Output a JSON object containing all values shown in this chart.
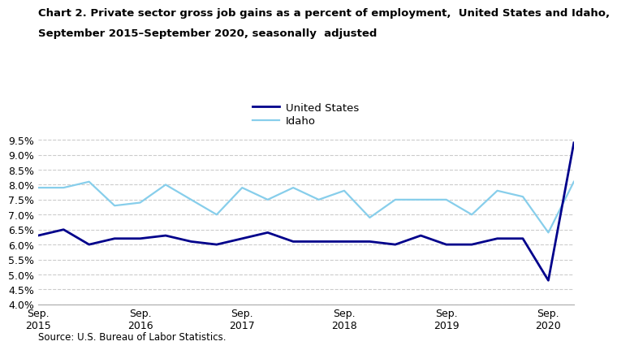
{
  "title_line1": "Chart 2. Private sector gross job gains as a percent of employment,  United States and Idaho,",
  "title_line2": "September 2015–September 2020, seasonally  adjusted",
  "source": "Source: U.S. Bureau of Labor Statistics.",
  "us_label": "United States",
  "idaho_label": "Idaho",
  "us_color": "#00008B",
  "idaho_color": "#87CEEB",
  "us_linewidth": 2.0,
  "idaho_linewidth": 1.6,
  "xlim": [
    0,
    21
  ],
  "ylim": [
    0.04,
    0.097
  ],
  "yticks": [
    0.04,
    0.045,
    0.05,
    0.055,
    0.06,
    0.065,
    0.07,
    0.075,
    0.08,
    0.085,
    0.09,
    0.095
  ],
  "xtick_positions": [
    0,
    4,
    8,
    12,
    16,
    20
  ],
  "xtick_labels": [
    "Sep.\n2015",
    "Sep.\n2016",
    "Sep.\n2017",
    "Sep.\n2018",
    "Sep.\n2019",
    "Sep.\n2020"
  ],
  "us_data": [
    0.063,
    0.065,
    0.06,
    0.062,
    0.062,
    0.063,
    0.061,
    0.06,
    0.062,
    0.064,
    0.061,
    0.061,
    0.061,
    0.061,
    0.06,
    0.063,
    0.06,
    0.06,
    0.062,
    0.062,
    0.048,
    0.094
  ],
  "idaho_data": [
    0.079,
    0.079,
    0.081,
    0.073,
    0.074,
    0.08,
    0.075,
    0.07,
    0.079,
    0.075,
    0.079,
    0.075,
    0.078,
    0.069,
    0.075,
    0.075,
    0.075,
    0.07,
    0.078,
    0.076,
    0.064,
    0.081
  ],
  "background_color": "#ffffff",
  "grid_color": "#cccccc"
}
